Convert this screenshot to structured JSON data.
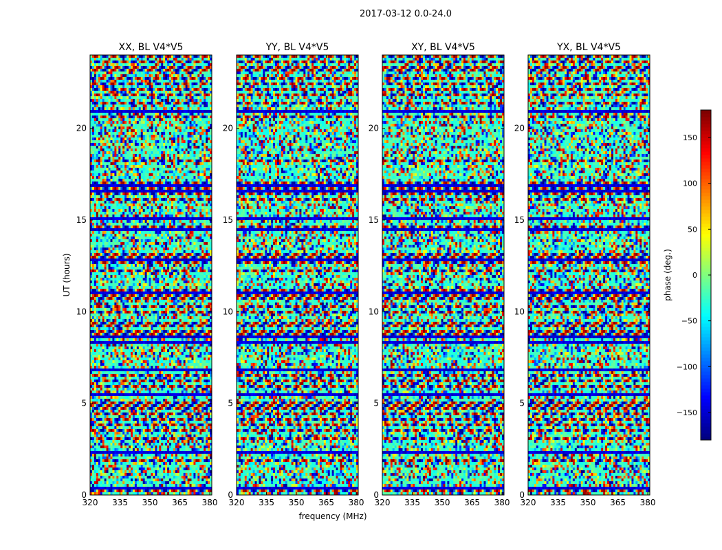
{
  "chart_data": {
    "type": "heatmap",
    "suptitle": "2017-03-12 0.0-24.0",
    "xlabel": "frequency (MHz)",
    "ylabel": "UT (hours)",
    "xlim": [
      320,
      381
    ],
    "ylim": [
      0,
      24
    ],
    "xticks": [
      320,
      335,
      350,
      365,
      380
    ],
    "yticks": [
      0,
      5,
      10,
      15,
      20
    ],
    "panels": [
      {
        "title": "XX, BL V4*V5",
        "polarization": "XX"
      },
      {
        "title": "YY, BL V4*V5",
        "polarization": "YY"
      },
      {
        "title": "XY, BL V4*V5",
        "polarization": "XY"
      },
      {
        "title": "YX, BL V4*V5",
        "polarization": "YX"
      }
    ],
    "colorbar": {
      "label": "phase (deg.)",
      "range": [
        -180,
        180
      ],
      "ticks": [
        -150,
        -100,
        -50,
        0,
        50,
        100,
        150
      ],
      "tick_labels": [
        "−150",
        "−100",
        "−50",
        "0",
        "50",
        "100",
        "150"
      ],
      "colormap": "jet"
    }
  }
}
